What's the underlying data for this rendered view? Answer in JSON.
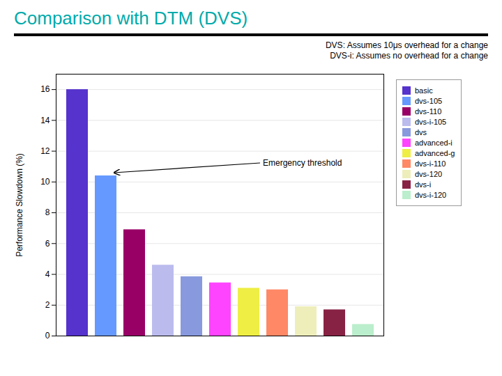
{
  "chart_data": {
    "type": "bar",
    "title": "Comparison with DTM (DVS)",
    "subtitle": [
      "DVS: Assumes 10μs overhead for a change",
      "DVS-i: Assumes no overhead for a change"
    ],
    "ylabel": "Performance Slowdown (%)",
    "categories": [
      "basic",
      "dvs-105",
      "dvs-110",
      "dvs-i-105",
      "dvs",
      "advanced-i",
      "advanced-g",
      "dvs-i-110",
      "dvs-120",
      "dvs-i",
      "dvs-i-120"
    ],
    "values": [
      16.0,
      10.4,
      6.9,
      4.6,
      3.85,
      3.45,
      3.1,
      3.0,
      1.9,
      1.7,
      0.75
    ],
    "colors": [
      "#5533CC",
      "#6699FF",
      "#990066",
      "#BBBBEE",
      "#8899DD",
      "#FF44FF",
      "#EEEE44",
      "#FF8866",
      "#EEEEBB",
      "#882244",
      "#BBEECC"
    ],
    "ylim": [
      0,
      17
    ],
    "yticks": [
      0,
      2,
      4,
      6,
      8,
      10,
      12,
      14,
      16
    ],
    "grid": true,
    "legend": "upper right",
    "tick_labels": "y",
    "annotations": [
      {
        "text": "Emergency threshold",
        "category": "dvs-105"
      }
    ]
  }
}
